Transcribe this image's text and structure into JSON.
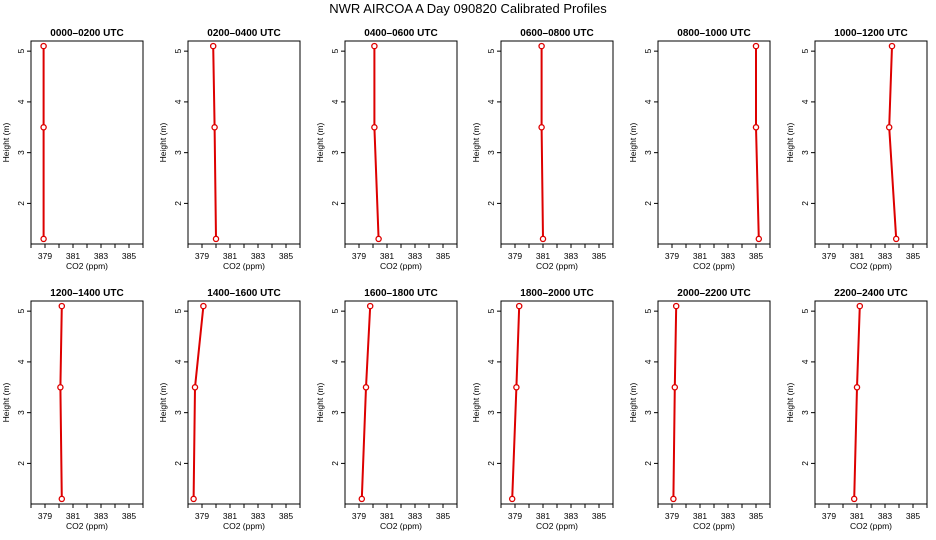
{
  "page_title": "NWR AIRCOA A  Day 090820  Calibrated Profiles",
  "colors": {
    "profile": "#dd0000",
    "axis": "#000000",
    "background": "#ffffff"
  },
  "chart_data": [
    {
      "type": "line",
      "title": "0000–0200 UTC",
      "xlabel": "CO2 (ppm)",
      "ylabel": "Height (m)",
      "xlim": [
        378,
        386
      ],
      "ylim": [
        1.2,
        5.2
      ],
      "xticks": [
        "379",
        "381",
        "383",
        "385"
      ],
      "yticks": [
        "2",
        "3",
        "4",
        "5"
      ],
      "x": [
        378.9,
        378.9,
        378.9
      ],
      "y": [
        1.3,
        3.5,
        5.1
      ],
      "marker": "circle",
      "grid": false
    },
    {
      "type": "line",
      "title": "0200–0400 UTC",
      "xlabel": "CO2 (ppm)",
      "ylabel": "Height (m)",
      "xlim": [
        378,
        386
      ],
      "ylim": [
        1.2,
        5.2
      ],
      "xticks": [
        "379",
        "381",
        "383",
        "385"
      ],
      "yticks": [
        "2",
        "3",
        "4",
        "5"
      ],
      "x": [
        380.0,
        379.9,
        379.8
      ],
      "y": [
        1.3,
        3.5,
        5.1
      ],
      "marker": "circle",
      "grid": false
    },
    {
      "type": "line",
      "title": "0400–0600 UTC",
      "xlabel": "CO2 (ppm)",
      "ylabel": "Height (m)",
      "xlim": [
        378,
        386
      ],
      "ylim": [
        1.2,
        5.2
      ],
      "xticks": [
        "379",
        "381",
        "383",
        "385"
      ],
      "yticks": [
        "2",
        "3",
        "4",
        "5"
      ],
      "x": [
        380.4,
        380.1,
        380.1
      ],
      "y": [
        1.3,
        3.5,
        5.1
      ],
      "marker": "circle",
      "grid": false
    },
    {
      "type": "line",
      "title": "0600–0800 UTC",
      "xlabel": "CO2 (ppm)",
      "ylabel": "Height (m)",
      "xlim": [
        378,
        386
      ],
      "ylim": [
        1.2,
        5.2
      ],
      "xticks": [
        "379",
        "381",
        "383",
        "385"
      ],
      "yticks": [
        "2",
        "3",
        "4",
        "5"
      ],
      "x": [
        381.0,
        380.9,
        380.9
      ],
      "y": [
        1.3,
        3.5,
        5.1
      ],
      "marker": "circle",
      "grid": false
    },
    {
      "type": "line",
      "title": "0800–1000 UTC",
      "xlabel": "CO2 (ppm)",
      "ylabel": "Height (m)",
      "xlim": [
        378,
        386
      ],
      "ylim": [
        1.2,
        5.2
      ],
      "xticks": [
        "379",
        "381",
        "383",
        "385"
      ],
      "yticks": [
        "2",
        "3",
        "4",
        "5"
      ],
      "x": [
        385.2,
        385.0,
        385.0
      ],
      "y": [
        1.3,
        3.5,
        5.1
      ],
      "marker": "circle",
      "grid": false
    },
    {
      "type": "line",
      "title": "1000–1200 UTC",
      "xlabel": "CO2 (ppm)",
      "ylabel": "Height (m)",
      "xlim": [
        378,
        386
      ],
      "ylim": [
        1.2,
        5.2
      ],
      "xticks": [
        "379",
        "381",
        "383",
        "385"
      ],
      "yticks": [
        "2",
        "3",
        "4",
        "5"
      ],
      "x": [
        383.8,
        383.3,
        383.5
      ],
      "y": [
        1.3,
        3.5,
        5.1
      ],
      "marker": "circle",
      "grid": false
    },
    {
      "type": "line",
      "title": "1200–1400 UTC",
      "xlabel": "CO2 (ppm)",
      "ylabel": "Height (m)",
      "xlim": [
        378,
        386
      ],
      "ylim": [
        1.2,
        5.2
      ],
      "xticks": [
        "379",
        "381",
        "383",
        "385"
      ],
      "yticks": [
        "2",
        "3",
        "4",
        "5"
      ],
      "x": [
        380.2,
        380.1,
        380.2
      ],
      "y": [
        1.3,
        3.5,
        5.1
      ],
      "marker": "circle",
      "grid": false
    },
    {
      "type": "line",
      "title": "1400–1600 UTC",
      "xlabel": "CO2 (ppm)",
      "ylabel": "Height (m)",
      "xlim": [
        378,
        386
      ],
      "ylim": [
        1.2,
        5.2
      ],
      "xticks": [
        "379",
        "381",
        "383",
        "385"
      ],
      "yticks": [
        "2",
        "3",
        "4",
        "5"
      ],
      "x": [
        378.4,
        378.5,
        379.1
      ],
      "y": [
        1.3,
        3.5,
        5.1
      ],
      "marker": "circle",
      "grid": false
    },
    {
      "type": "line",
      "title": "1600–1800 UTC",
      "xlabel": "CO2 (ppm)",
      "ylabel": "Height (m)",
      "xlim": [
        378,
        386
      ],
      "ylim": [
        1.2,
        5.2
      ],
      "xticks": [
        "379",
        "381",
        "383",
        "385"
      ],
      "yticks": [
        "2",
        "3",
        "4",
        "5"
      ],
      "x": [
        379.2,
        379.5,
        379.8
      ],
      "y": [
        1.3,
        3.5,
        5.1
      ],
      "marker": "circle",
      "grid": false
    },
    {
      "type": "line",
      "title": "1800–2000 UTC",
      "xlabel": "CO2 (ppm)",
      "ylabel": "Height (m)",
      "xlim": [
        378,
        386
      ],
      "ylim": [
        1.2,
        5.2
      ],
      "xticks": [
        "379",
        "381",
        "383",
        "385"
      ],
      "yticks": [
        "2",
        "3",
        "4",
        "5"
      ],
      "x": [
        378.8,
        379.1,
        379.3
      ],
      "y": [
        1.3,
        3.5,
        5.1
      ],
      "marker": "circle",
      "grid": false
    },
    {
      "type": "line",
      "title": "2000–2200 UTC",
      "xlabel": "CO2 (ppm)",
      "ylabel": "Height (m)",
      "xlim": [
        378,
        386
      ],
      "ylim": [
        1.2,
        5.2
      ],
      "xticks": [
        "379",
        "381",
        "383",
        "385"
      ],
      "yticks": [
        "2",
        "3",
        "4",
        "5"
      ],
      "x": [
        379.1,
        379.2,
        379.3
      ],
      "y": [
        1.3,
        3.5,
        5.1
      ],
      "marker": "circle",
      "grid": false
    },
    {
      "type": "line",
      "title": "2200–2400 UTC",
      "xlabel": "CO2 (ppm)",
      "ylabel": "Height (m)",
      "xlim": [
        378,
        386
      ],
      "ylim": [
        1.2,
        5.2
      ],
      "xticks": [
        "379",
        "381",
        "383",
        "385"
      ],
      "yticks": [
        "2",
        "3",
        "4",
        "5"
      ],
      "x": [
        380.8,
        381.0,
        381.2
      ],
      "y": [
        1.3,
        3.5,
        5.1
      ],
      "marker": "circle",
      "grid": false
    }
  ]
}
